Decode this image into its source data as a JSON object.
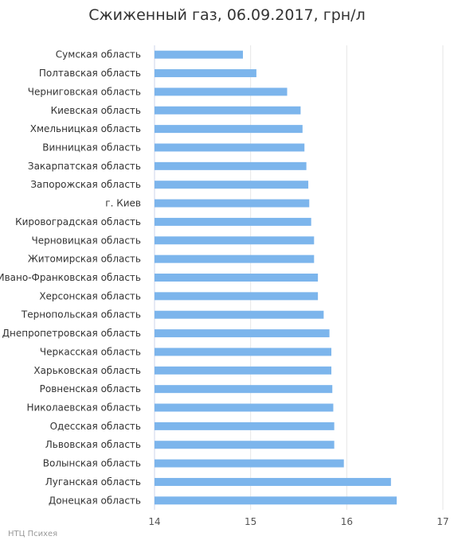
{
  "chart_data": {
    "type": "bar",
    "orientation": "horizontal",
    "title": "Сжиженный газ, 06.09.2017, грн/л",
    "xlabel": "",
    "ylabel": "",
    "xlim": [
      14,
      17
    ],
    "ticks": [
      "14",
      "15",
      "16",
      "17"
    ],
    "bar_color": "#7cb5ec",
    "grid": true,
    "categories": [
      "Сумская область",
      "Полтавская область",
      "Черниговская область",
      "Киевская область",
      "Хмельницкая область",
      "Винницкая область",
      "Закарпатская область",
      "Запорожская область",
      "г. Киев",
      "Кировоградская область",
      "Черновицкая область",
      "Житомирская область",
      "Ивано-Франковская область",
      "Херсонская область",
      "Тернопольская область",
      "Днепропетровская область",
      "Черкасская область",
      "Харьковская область",
      "Ровненская область",
      "Николаевская область",
      "Одесская область",
      "Львовская область",
      "Волынская область",
      "Луганская область",
      "Донецкая область"
    ],
    "values": [
      14.92,
      15.06,
      15.38,
      15.52,
      15.54,
      15.56,
      15.58,
      15.6,
      15.61,
      15.63,
      15.66,
      15.66,
      15.7,
      15.7,
      15.76,
      15.82,
      15.84,
      15.84,
      15.85,
      15.86,
      15.87,
      15.87,
      15.97,
      16.46,
      16.52
    ]
  },
  "credit": "НТЦ Психея"
}
